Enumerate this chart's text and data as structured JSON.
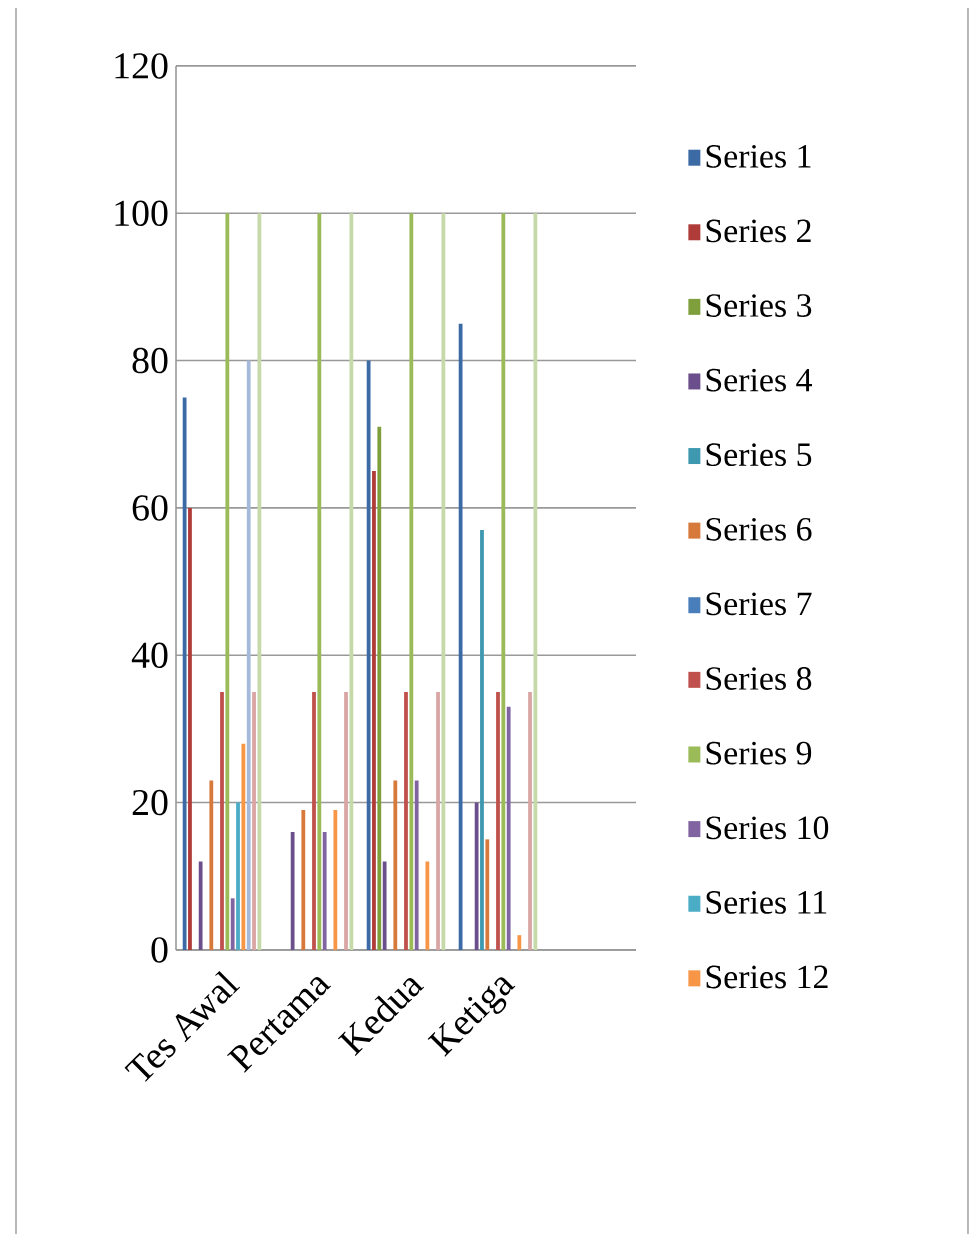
{
  "chart_data": {
    "type": "bar",
    "categories": [
      "Tes Awal",
      "Pertama",
      "Kedua",
      "Ketiga",
      null
    ],
    "ylim": [
      0,
      120
    ],
    "yticks": [
      0,
      20,
      40,
      60,
      80,
      100,
      120
    ],
    "grid": "y",
    "legend": "right",
    "series": [
      {
        "name": "Series 1",
        "color": "#3c6aa5",
        "values": [
          75,
          null,
          80,
          85,
          null
        ]
      },
      {
        "name": "Series 2",
        "color": "#b03c3a",
        "values": [
          60,
          null,
          65,
          null,
          null
        ]
      },
      {
        "name": "Series 3",
        "color": "#7f9f3c",
        "values": [
          null,
          null,
          71,
          null,
          null
        ]
      },
      {
        "name": "Series 4",
        "color": "#6b4f8c",
        "values": [
          12,
          16,
          12,
          20,
          null
        ]
      },
      {
        "name": "Series 5",
        "color": "#3e99b0",
        "values": [
          null,
          null,
          null,
          57,
          null
        ]
      },
      {
        "name": "Series 6",
        "color": "#d7793a",
        "values": [
          23,
          19,
          23,
          15,
          null
        ]
      },
      {
        "name": "Series 7",
        "color": "#4a7ebb",
        "values": [
          null,
          null,
          null,
          null,
          null
        ]
      },
      {
        "name": "Series 8",
        "color": "#c0504d",
        "values": [
          35,
          35,
          35,
          35,
          null
        ]
      },
      {
        "name": "Series 9",
        "color": "#9bbb59",
        "values": [
          100,
          100,
          100,
          100,
          null
        ]
      },
      {
        "name": "Series 10",
        "color": "#8064a2",
        "values": [
          7,
          16,
          23,
          33,
          null
        ]
      },
      {
        "name": "Series 11",
        "color": "#4bacc6",
        "values": [
          20,
          null,
          null,
          null,
          null
        ]
      },
      {
        "name": "Series 12",
        "color": "#f79646",
        "values": [
          28,
          19,
          12,
          2,
          null
        ]
      },
      {
        "color": "#a5b9da",
        "values": [
          80,
          null,
          null,
          null,
          null
        ]
      },
      {
        "color": "#d9a6a5",
        "values": [
          35,
          35,
          35,
          35,
          null
        ]
      },
      {
        "color": "#c6d9a9",
        "values": [
          100,
          100,
          100,
          100,
          null
        ]
      }
    ]
  }
}
